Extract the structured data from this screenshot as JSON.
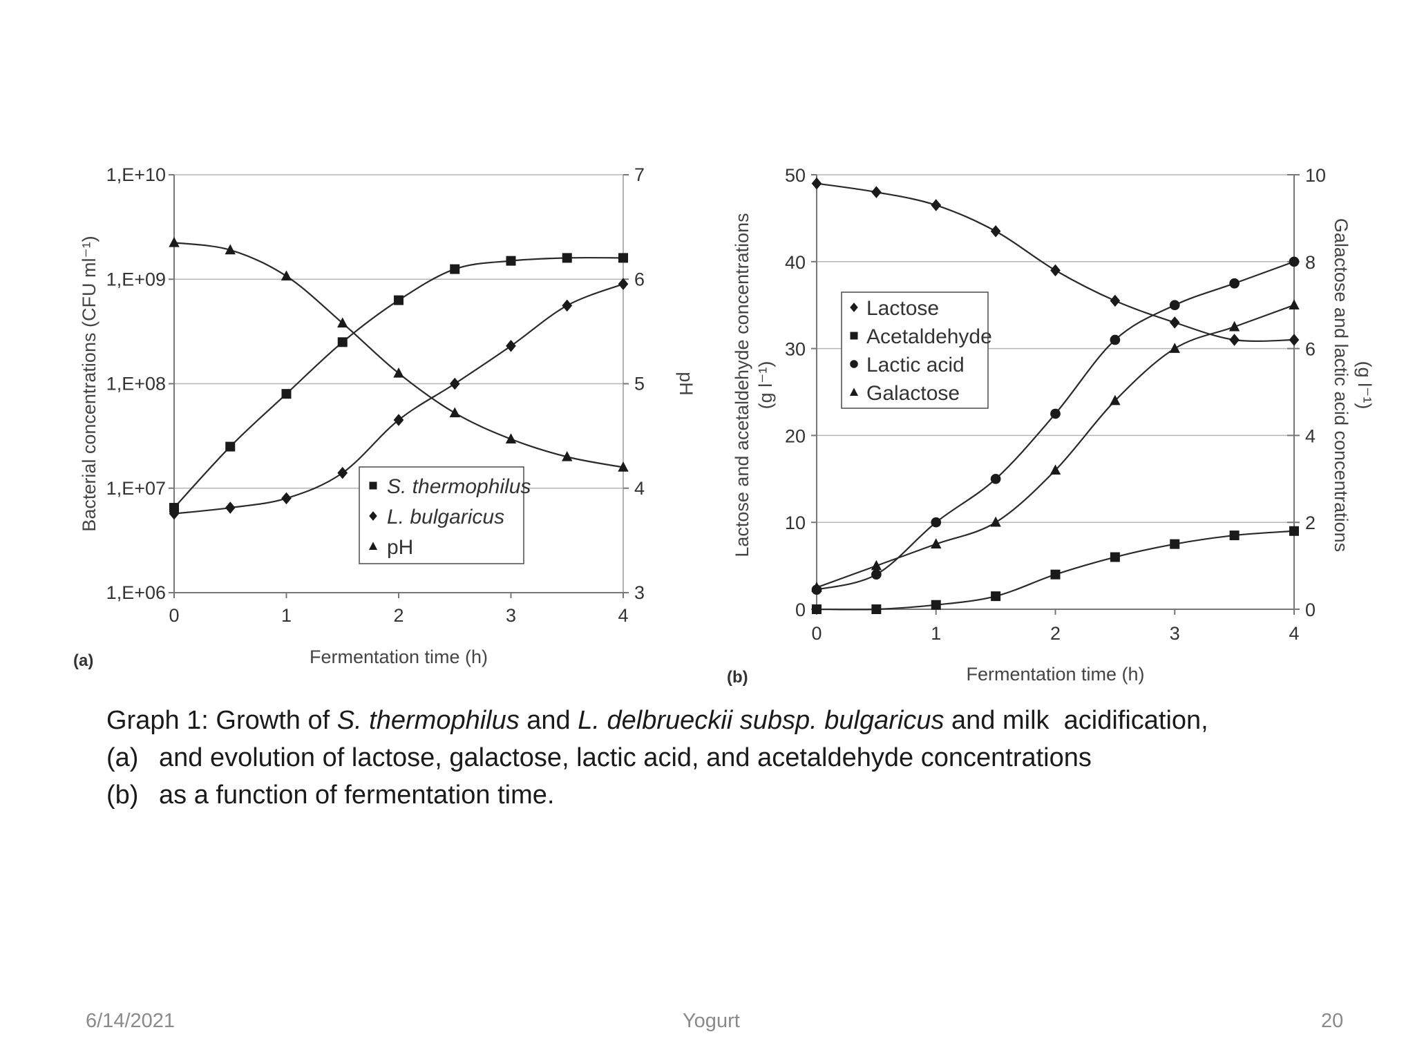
{
  "caption": {
    "line1_pre": "Graph 1: Growth of ",
    "line1_it1": "S. thermophilus",
    "line1_mid": " and ",
    "line1_it2": "L. delbrueckii subsp. bulgaricus",
    "line1_post": " and milk  acidification,",
    "line2_mark": "(a)",
    "line2_text": "and evolution of lactose, galactose, lactic acid, and acetaldehyde concentrations",
    "line3_mark": "(b)",
    "line3_text": "as a function of fermentation time."
  },
  "footer": {
    "date": "6/14/2021",
    "title": "Yogurt",
    "page": "20"
  },
  "chart_data": [
    {
      "type": "scatter",
      "panel": "(a)",
      "xlabel": "Fermentation time (h)",
      "ylabel": "Bacterial concentrations (CFU ml⁻¹)",
      "y2label": "pH",
      "x_ticks": [
        "0",
        "1",
        "2",
        "3",
        "4"
      ],
      "y_ticks": [
        "1,E+06",
        "1,E+07",
        "1,E+08",
        "1,E+09",
        "1,E+10"
      ],
      "y2_ticks": [
        "3",
        "4",
        "5",
        "6",
        "7"
      ],
      "xlim": [
        0,
        4
      ],
      "ylim": [
        1000000,
        10000000000
      ],
      "yscale": "log",
      "y2lim": [
        3,
        7
      ],
      "grid": "horizontal",
      "legend_position": "center-bottom",
      "series": [
        {
          "name": "S. thermophilus",
          "italic": true,
          "marker": "square",
          "axis": "left",
          "x": [
            0,
            0.5,
            1,
            1.5,
            2,
            2.5,
            3,
            3.5,
            4
          ],
          "y": [
            6500000,
            25000000,
            80000000,
            250000000,
            630000000,
            1250000000,
            1500000000,
            1600000000,
            1600000000
          ]
        },
        {
          "name": "L. bulgaricus",
          "italic": true,
          "marker": "diamond",
          "axis": "left",
          "x": [
            0,
            0.5,
            1,
            1.5,
            2,
            2.5,
            3,
            3.5,
            4
          ],
          "y": [
            5700000,
            6500000,
            8000000,
            14000000,
            45000000,
            100000000,
            230000000,
            560000000,
            900000000
          ]
        },
        {
          "name": "pH",
          "italic": false,
          "marker": "triangle",
          "axis": "right",
          "x": [
            0,
            0.5,
            1,
            1.5,
            2,
            2.5,
            3,
            3.5,
            4
          ],
          "y": [
            6.35,
            6.28,
            6.03,
            5.58,
            5.1,
            4.72,
            4.47,
            4.3,
            4.2
          ]
        }
      ]
    },
    {
      "type": "scatter",
      "panel": "(b)",
      "xlabel": "Fermentation time (h)",
      "ylabel_line1": "Lactose and acetaldehyde concentrations",
      "ylabel_line2": "(g l⁻¹)",
      "y2label_line1": "Galactose and lactic acid concentrations",
      "y2label_line2": "(g l⁻¹)",
      "x_ticks": [
        "0",
        "1",
        "2",
        "3",
        "4"
      ],
      "y_ticks": [
        "0",
        "10",
        "20",
        "30",
        "40",
        "50"
      ],
      "y2_ticks": [
        "0",
        "2",
        "4",
        "6",
        "8",
        "10"
      ],
      "xlim": [
        0,
        4
      ],
      "ylim": [
        0,
        50
      ],
      "y2lim": [
        0,
        10
      ],
      "grid": "horizontal",
      "legend_position": "top-left",
      "series": [
        {
          "name": "Lactose",
          "marker": "diamond",
          "axis": "left",
          "x": [
            0,
            0.5,
            1,
            1.5,
            2,
            2.5,
            3,
            3.5,
            4
          ],
          "y": [
            49,
            48,
            46.5,
            43.5,
            39,
            35.5,
            33,
            31,
            31
          ]
        },
        {
          "name": "Acetaldehyde",
          "marker": "square",
          "axis": "left",
          "x": [
            0,
            0.5,
            1,
            1.5,
            2,
            2.5,
            3,
            3.5,
            4
          ],
          "y": [
            0,
            0,
            0.5,
            1.5,
            4,
            6,
            7.5,
            8.5,
            9
          ]
        },
        {
          "name": "Lactic acid",
          "marker": "circle",
          "axis": "right",
          "x": [
            0,
            0.5,
            1,
            1.5,
            2,
            2.5,
            3,
            3.5,
            4
          ],
          "y": [
            0.45,
            0.8,
            2,
            3,
            4.5,
            6.2,
            7,
            7.5,
            8
          ]
        },
        {
          "name": "Galactose",
          "marker": "triangle",
          "axis": "right",
          "x": [
            0,
            0.5,
            1,
            1.5,
            2,
            2.5,
            3,
            3.5,
            4
          ],
          "y": [
            0.5,
            1,
            1.5,
            2,
            3.2,
            4.8,
            6,
            6.5,
            7
          ]
        }
      ]
    }
  ]
}
